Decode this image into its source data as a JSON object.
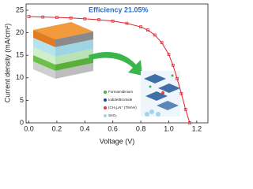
{
  "chart_data": {
    "type": "line",
    "title": "Efficiency 21.05%",
    "x_label": "Voltage (V)",
    "y_label": "Current density (mA/cm²)",
    "annotations": [
      "Formamidinium",
      "Iodide/Bromide",
      "(CH₃)₄N⁺ (TMAH)",
      "SnO₂"
    ],
    "x": [
      0,
      0.1,
      0.2,
      0.3,
      0.4,
      0.5,
      0.6,
      0.7,
      0.8,
      0.85,
      0.9,
      0.95,
      1.0,
      1.03,
      1.06,
      1.09,
      1.12,
      1.15
    ],
    "series": [
      {
        "color": "#e3212b",
        "values": [
          23.6,
          23.5,
          23.4,
          23.3,
          23.1,
          22.9,
          22.6,
          22.1,
          21.3,
          20.6,
          19.5,
          17.8,
          15.2,
          12.8,
          9.8,
          6.5,
          3.0,
          0
        ]
      }
    ],
    "xlim": [
      -0.02,
      1.28
    ],
    "ylim": [
      0,
      26.4
    ],
    "xticks": [
      {
        "value": 0,
        "label": "0.0"
      },
      0.2,
      0.4,
      0.6,
      0.8,
      {
        "value": 1,
        "label": "1.0"
      },
      1.2
    ],
    "yticks": [
      0,
      5,
      10,
      15,
      20,
      25
    ]
  }
}
